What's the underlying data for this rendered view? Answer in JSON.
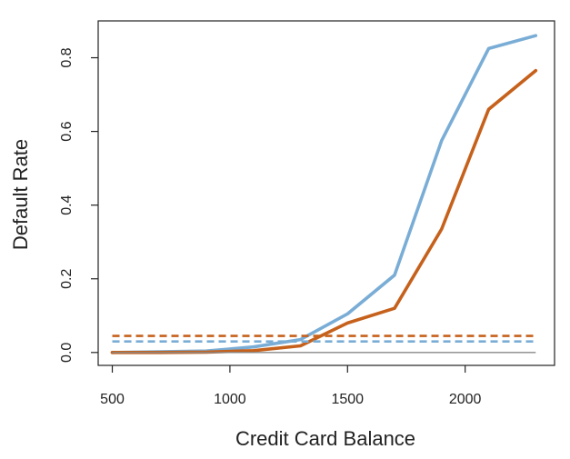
{
  "chart_data": {
    "type": "line",
    "xlabel": "Credit Card Balance",
    "ylabel": "Default Rate",
    "xlim": [
      440,
      2380
    ],
    "ylim": [
      -0.035,
      0.9
    ],
    "x_ticks": [
      500,
      1000,
      1500,
      2000
    ],
    "x_tick_labels": [
      "500",
      "1000",
      "1500",
      "2000"
    ],
    "y_ticks": [
      0.0,
      0.2,
      0.4,
      0.6,
      0.8
    ],
    "y_tick_labels": [
      "0.0",
      "0.2",
      "0.4",
      "0.6",
      "0.8"
    ],
    "grid": false,
    "x": [
      500,
      700,
      900,
      1100,
      1300,
      1500,
      1700,
      1900,
      2100,
      2300
    ],
    "series": [
      {
        "color": "#7aadd6",
        "style": "solid",
        "values": [
          0.0,
          0.002,
          0.004,
          0.015,
          0.035,
          0.105,
          0.21,
          0.575,
          0.825,
          0.86
        ]
      },
      {
        "color": "#c6611c",
        "style": "solid",
        "values": [
          0.0,
          0.0,
          0.001,
          0.005,
          0.018,
          0.08,
          0.12,
          0.335,
          0.66,
          0.765
        ]
      },
      {
        "color": "#c6611c",
        "style": "dashed",
        "y_constant": 0.045
      },
      {
        "color": "#7aadd6",
        "style": "dashed",
        "y_constant": 0.03
      },
      {
        "color": "#888888",
        "style": "solid-thin",
        "y_constant": 0.0
      }
    ]
  }
}
